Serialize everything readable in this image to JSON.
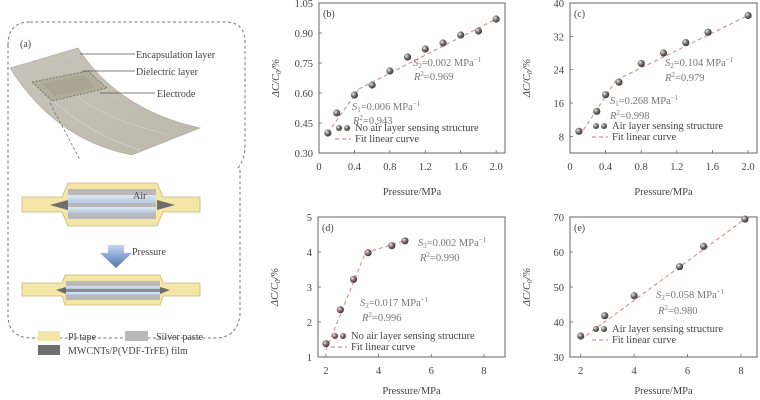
{
  "panel_a": {
    "label": "(a)",
    "callouts": [
      "Encapsulation layer",
      "Dielectric layer",
      "Electrode"
    ],
    "air_label": "Air",
    "pressure_label": "Pressure",
    "legend": [
      {
        "label": "PI tape",
        "color": "#f3e6a6"
      },
      {
        "label": "Silver paste",
        "color": "#b9b9b9"
      },
      {
        "label": "MWCNTs/P(VDF-TrFE) film",
        "color": "#6e6e6e"
      }
    ]
  },
  "chart_data": [
    {
      "id": "b",
      "panel_label": "(b)",
      "type": "scatter",
      "xlabel": "Pressure/MPa",
      "ylabel": "ΔC/C0/%",
      "xlim": [
        0,
        2.1
      ],
      "ylim": [
        0.3,
        1.05
      ],
      "xticks": [
        0,
        0.4,
        0.8,
        1.2,
        1.6,
        2.0
      ],
      "xtick_labels": [
        "0",
        "0.4",
        "0.8",
        "1.2",
        "1.6",
        "2.0"
      ],
      "yticks": [
        0.3,
        0.45,
        0.6,
        0.75,
        0.9,
        1.05
      ],
      "ytick_labels": [
        "0.30",
        "0.45",
        "0.60",
        "0.75",
        "0.90",
        "1.05"
      ],
      "series": [
        {
          "name": "No air layer sensing structure",
          "x": [
            0.1,
            0.2,
            0.4,
            0.6,
            0.8,
            1.0,
            1.2,
            1.4,
            1.6,
            1.8,
            2.0
          ],
          "y": [
            0.4,
            0.5,
            0.59,
            0.64,
            0.71,
            0.78,
            0.82,
            0.85,
            0.89,
            0.91,
            0.97
          ]
        }
      ],
      "fits": [
        {
          "x": [
            0.1,
            0.45
          ],
          "y": [
            0.4,
            0.62
          ]
        },
        {
          "x": [
            0.45,
            2.0
          ],
          "y": [
            0.62,
            0.97
          ]
        }
      ],
      "annotations": [
        {
          "s": "S",
          "sub": "2",
          "text": "=0.002 MPa",
          "sup": "−1",
          "r2": "=0.969"
        },
        {
          "s": "S",
          "sub": "1",
          "text": "=0.006 MPa",
          "sup": "−1",
          "r2": "=0.943"
        }
      ],
      "legend": [
        "No air layer sensing structure",
        "Fit linear curve"
      ]
    },
    {
      "id": "c",
      "panel_label": "(c)",
      "type": "scatter",
      "xlabel": "Pressure/MPa",
      "ylabel": "ΔC/C0/%",
      "xlim": [
        0,
        2.1
      ],
      "ylim": [
        4,
        40
      ],
      "xticks": [
        0,
        0.4,
        0.8,
        1.2,
        1.6,
        2.0
      ],
      "xtick_labels": [
        "0",
        "0.4",
        "0.8",
        "1.2",
        "1.6",
        "2.0"
      ],
      "yticks": [
        8,
        16,
        24,
        32,
        40
      ],
      "ytick_labels": [
        "8",
        "16",
        "24",
        "32",
        "40"
      ],
      "series": [
        {
          "name": "Air layer sensing structure",
          "x": [
            0.1,
            0.3,
            0.4,
            0.55,
            0.8,
            1.05,
            1.3,
            1.55,
            2.0
          ],
          "y": [
            9.2,
            14,
            18,
            21,
            25.5,
            28,
            30.5,
            33,
            37
          ]
        }
      ],
      "fits": [
        {
          "x": [
            0.15,
            0.52
          ],
          "y": [
            9.5,
            21.5
          ]
        },
        {
          "x": [
            0.52,
            2.0
          ],
          "y": [
            21.5,
            37
          ]
        }
      ],
      "annotations": [
        {
          "s": "S",
          "sub": "2",
          "text": "=0.104 MPa",
          "sup": "−1",
          "r2": "=0.979"
        },
        {
          "s": "S",
          "sub": "1",
          "text": "=0.268 MPa",
          "sup": "−1",
          "r2": "=0.998"
        }
      ],
      "legend": [
        "Air layer sensing structure",
        "Fit linear curve"
      ]
    },
    {
      "id": "d",
      "panel_label": "(d)",
      "type": "scatter",
      "xlabel": "Pressure/MPa",
      "ylabel": "ΔC/C0/%",
      "xlim": [
        1.7,
        8.8
      ],
      "ylim": [
        1,
        5
      ],
      "xticks": [
        2,
        4,
        6,
        8
      ],
      "xtick_labels": [
        "2",
        "4",
        "6",
        "8"
      ],
      "yticks": [
        1,
        2,
        3,
        4,
        5
      ],
      "ytick_labels": [
        "1",
        "2",
        "3",
        "4",
        "5"
      ],
      "series": [
        {
          "name": "No air layer sensing structure",
          "x": [
            2.0,
            2.55,
            3.05,
            3.6,
            4.5,
            5.0
          ],
          "y": [
            1.38,
            2.35,
            3.22,
            3.98,
            4.18,
            4.32
          ]
        }
      ],
      "fits": [
        {
          "x": [
            2.0,
            3.5
          ],
          "y": [
            1.2,
            3.98
          ]
        },
        {
          "x": [
            3.5,
            5.0
          ],
          "y": [
            3.98,
            4.32
          ]
        }
      ],
      "annotations": [
        {
          "s": "S",
          "sub": "3",
          "text": "=0.002 MPa",
          "sup": "−1",
          "r2": "=0.990"
        },
        {
          "s": "S",
          "sub": "2",
          "text": "=0.017 MPa",
          "sup": "−1",
          "r2": "=0.996"
        }
      ],
      "legend": [
        "No air layer sensing structure",
        "Fit linear curve"
      ]
    },
    {
      "id": "e",
      "panel_label": "(e)",
      "type": "scatter",
      "xlabel": "Pressure/MPa",
      "ylabel": "ΔC/C0/%",
      "xlim": [
        1.6,
        8.6
      ],
      "ylim": [
        30,
        70
      ],
      "xticks": [
        2,
        4,
        6,
        8
      ],
      "xtick_labels": [
        "2",
        "4",
        "6",
        "8"
      ],
      "yticks": [
        30,
        40,
        50,
        60,
        70
      ],
      "ytick_labels": [
        "30",
        "40",
        "50",
        "60",
        "70"
      ],
      "series": [
        {
          "name": "Air layer sensing structure",
          "x": [
            2.0,
            2.9,
            4.0,
            5.7,
            6.6,
            8.15
          ],
          "y": [
            36,
            41.8,
            47.5,
            55.8,
            61.6,
            69.4
          ]
        }
      ],
      "fits": [
        {
          "x": [
            2.0,
            8.15
          ],
          "y": [
            35,
            69.4
          ]
        }
      ],
      "annotations": [
        {
          "s": "S",
          "sub": "2",
          "text": "=0.058 MPa",
          "sup": "−1",
          "r2": "=0.980"
        }
      ],
      "legend": [
        "Air layer sensing structure",
        "Fit linear curve"
      ]
    }
  ]
}
